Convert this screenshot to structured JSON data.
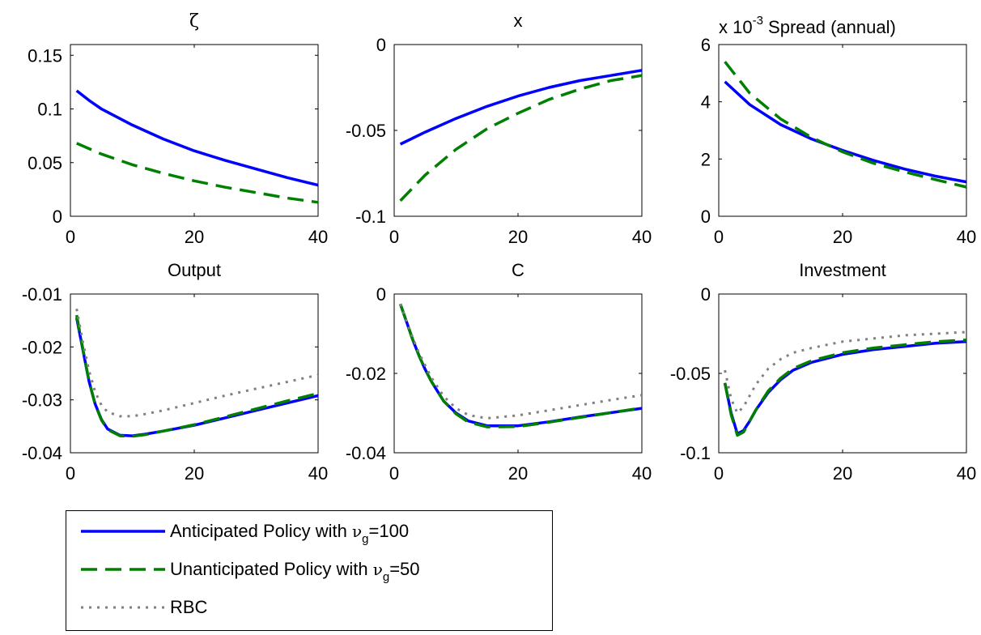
{
  "chart_data": [
    {
      "type": "line",
      "title": "ζ",
      "xlim": [
        0,
        40
      ],
      "ylim": [
        0,
        0.16
      ],
      "xticks": [
        0,
        20,
        40
      ],
      "xtick_labels": [
        "0",
        "20",
        "40"
      ],
      "yticks": [
        0,
        0.05,
        0.1,
        0.15
      ],
      "ytick_labels": [
        "0",
        "0.05",
        "0.1",
        "0.15"
      ],
      "grid": false,
      "series": [
        {
          "name": "Anticipated Policy with νg=100",
          "x": [
            1,
            3,
            5,
            8,
            10,
            15,
            20,
            25,
            30,
            35,
            40
          ],
          "y": [
            0.117,
            0.108,
            0.1,
            0.091,
            0.085,
            0.072,
            0.061,
            0.052,
            0.044,
            0.036,
            0.029
          ]
        },
        {
          "name": "Unanticipated Policy with νg=50",
          "x": [
            1,
            5,
            10,
            15,
            20,
            25,
            30,
            35,
            40
          ],
          "y": [
            0.068,
            0.058,
            0.048,
            0.04,
            0.033,
            0.027,
            0.022,
            0.017,
            0.013
          ]
        }
      ]
    },
    {
      "type": "line",
      "title": "x",
      "xlim": [
        0,
        40
      ],
      "ylim": [
        -0.1,
        0
      ],
      "xticks": [
        0,
        20,
        40
      ],
      "xtick_labels": [
        "0",
        "20",
        "40"
      ],
      "yticks": [
        -0.1,
        -0.05,
        0
      ],
      "ytick_labels": [
        "-0.1",
        "-0.05",
        "0"
      ],
      "grid": false,
      "series": [
        {
          "name": "Anticipated Policy with νg=100",
          "x": [
            1,
            5,
            10,
            15,
            20,
            25,
            30,
            35,
            40
          ],
          "y": [
            -0.058,
            -0.051,
            -0.043,
            -0.036,
            -0.03,
            -0.025,
            -0.021,
            -0.018,
            -0.015
          ]
        },
        {
          "name": "Unanticipated Policy with νg=50",
          "x": [
            1,
            5,
            10,
            15,
            20,
            25,
            30,
            35,
            40
          ],
          "y": [
            -0.091,
            -0.076,
            -0.061,
            -0.049,
            -0.04,
            -0.032,
            -0.026,
            -0.021,
            -0.018
          ]
        }
      ]
    },
    {
      "type": "line",
      "title": "Spread (annual)",
      "scale_label": "x 10",
      "scale_exponent": "-3",
      "xlim": [
        0,
        40
      ],
      "ylim": [
        0,
        6
      ],
      "xticks": [
        0,
        20,
        40
      ],
      "xtick_labels": [
        "0",
        "20",
        "40"
      ],
      "yticks": [
        0,
        2,
        4,
        6
      ],
      "ytick_labels": [
        "0",
        "2",
        "4",
        "6"
      ],
      "grid": false,
      "series": [
        {
          "name": "Anticipated Policy with νg=100",
          "x": [
            1,
            5,
            10,
            15,
            20,
            25,
            30,
            35,
            40
          ],
          "y": [
            4.7,
            3.9,
            3.2,
            2.7,
            2.3,
            1.95,
            1.65,
            1.4,
            1.2
          ]
        },
        {
          "name": "Unanticipated Policy with νg=50",
          "x": [
            1,
            5,
            10,
            15,
            20,
            25,
            30,
            35,
            40
          ],
          "y": [
            5.4,
            4.3,
            3.4,
            2.75,
            2.25,
            1.85,
            1.55,
            1.28,
            1.02
          ]
        }
      ]
    },
    {
      "type": "line",
      "title": "Output",
      "xlim": [
        0,
        40
      ],
      "ylim": [
        -0.04,
        -0.01
      ],
      "xticks": [
        0,
        20,
        40
      ],
      "xtick_labels": [
        "0",
        "20",
        "40"
      ],
      "yticks": [
        -0.04,
        -0.03,
        -0.02,
        -0.01
      ],
      "ytick_labels": [
        "-0.04",
        "-0.03",
        "-0.02",
        "-0.01"
      ],
      "grid": false,
      "series": [
        {
          "name": "Anticipated Policy with νg=100",
          "x": [
            1,
            2,
            3,
            4,
            5,
            6,
            8,
            10,
            12,
            15,
            20,
            25,
            30,
            35,
            40
          ],
          "y": [
            -0.0145,
            -0.0205,
            -0.0265,
            -0.0308,
            -0.0337,
            -0.0355,
            -0.0367,
            -0.0368,
            -0.0365,
            -0.0359,
            -0.0348,
            -0.0334,
            -0.032,
            -0.0306,
            -0.0292
          ]
        },
        {
          "name": "Unanticipated Policy with νg=50",
          "x": [
            1,
            2,
            3,
            4,
            5,
            6,
            8,
            10,
            12,
            15,
            20,
            25,
            30,
            35,
            40
          ],
          "y": [
            -0.014,
            -0.0203,
            -0.0265,
            -0.0309,
            -0.0338,
            -0.0356,
            -0.0368,
            -0.0369,
            -0.0366,
            -0.0359,
            -0.0347,
            -0.0332,
            -0.0317,
            -0.0302,
            -0.0288
          ]
        },
        {
          "name": "RBC",
          "x": [
            1,
            2,
            3,
            4,
            5,
            6,
            8,
            10,
            12,
            15,
            20,
            25,
            30,
            35,
            40
          ],
          "y": [
            -0.0128,
            -0.019,
            -0.0245,
            -0.0285,
            -0.031,
            -0.0323,
            -0.0331,
            -0.0331,
            -0.0327,
            -0.032,
            -0.0306,
            -0.0292,
            -0.0279,
            -0.0266,
            -0.0253
          ]
        }
      ]
    },
    {
      "type": "line",
      "title": "C",
      "xlim": [
        0,
        40
      ],
      "ylim": [
        -0.04,
        0
      ],
      "xticks": [
        0,
        20,
        40
      ],
      "xtick_labels": [
        "0",
        "20",
        "40"
      ],
      "yticks": [
        -0.04,
        -0.02,
        0
      ],
      "ytick_labels": [
        "-0.04",
        "-0.02",
        "0"
      ],
      "grid": false,
      "series": [
        {
          "name": "Anticipated Policy with νg=100",
          "x": [
            1,
            2,
            3,
            4,
            5,
            6,
            8,
            10,
            12,
            15,
            20,
            25,
            30,
            35,
            40
          ],
          "y": [
            -0.0025,
            -0.007,
            -0.0115,
            -0.0155,
            -0.019,
            -0.022,
            -0.027,
            -0.03,
            -0.032,
            -0.0332,
            -0.0332,
            -0.0322,
            -0.031,
            -0.0299,
            -0.0288
          ]
        },
        {
          "name": "Unanticipated Policy with νg=50",
          "x": [
            1,
            2,
            3,
            4,
            5,
            6,
            8,
            10,
            12,
            15,
            20,
            25,
            30,
            35,
            40
          ],
          "y": [
            -0.0025,
            -0.007,
            -0.0115,
            -0.0155,
            -0.019,
            -0.022,
            -0.027,
            -0.0302,
            -0.0323,
            -0.0335,
            -0.0334,
            -0.0323,
            -0.0311,
            -0.0299,
            -0.0287
          ]
        },
        {
          "name": "RBC",
          "x": [
            1,
            2,
            3,
            4,
            5,
            6,
            8,
            10,
            12,
            15,
            20,
            25,
            30,
            35,
            40
          ],
          "y": [
            -0.0025,
            -0.0068,
            -0.011,
            -0.0148,
            -0.018,
            -0.021,
            -0.0258,
            -0.0288,
            -0.0305,
            -0.0313,
            -0.0306,
            -0.0293,
            -0.028,
            -0.0267,
            -0.0255
          ]
        }
      ]
    },
    {
      "type": "line",
      "title": "Investment",
      "xlim": [
        0,
        40
      ],
      "ylim": [
        -0.1,
        0
      ],
      "xticks": [
        0,
        20,
        40
      ],
      "xtick_labels": [
        "0",
        "20",
        "40"
      ],
      "yticks": [
        -0.1,
        -0.05,
        0
      ],
      "ytick_labels": [
        "-0.1",
        "-0.05",
        "0"
      ],
      "grid": false,
      "series": [
        {
          "name": "Anticipated Policy with νg=100",
          "x": [
            1,
            2,
            3,
            4,
            5,
            6,
            8,
            10,
            12,
            15,
            20,
            25,
            30,
            35,
            40
          ],
          "y": [
            -0.056,
            -0.075,
            -0.088,
            -0.086,
            -0.08,
            -0.073,
            -0.062,
            -0.054,
            -0.048,
            -0.043,
            -0.038,
            -0.035,
            -0.033,
            -0.031,
            -0.03
          ]
        },
        {
          "name": "Unanticipated Policy with νg=50",
          "x": [
            1,
            2,
            3,
            4,
            5,
            6,
            8,
            10,
            12,
            15,
            20,
            25,
            30,
            35,
            40
          ],
          "y": [
            -0.056,
            -0.076,
            -0.089,
            -0.087,
            -0.08,
            -0.073,
            -0.061,
            -0.053,
            -0.047,
            -0.042,
            -0.037,
            -0.034,
            -0.032,
            -0.03,
            -0.029
          ]
        },
        {
          "name": "RBC",
          "x": [
            1,
            2,
            3,
            4,
            5,
            6,
            8,
            10,
            12,
            15,
            20,
            25,
            30,
            35,
            40
          ],
          "y": [
            -0.048,
            -0.066,
            -0.075,
            -0.071,
            -0.064,
            -0.057,
            -0.047,
            -0.041,
            -0.037,
            -0.034,
            -0.03,
            -0.028,
            -0.026,
            -0.025,
            -0.024
          ]
        }
      ]
    }
  ],
  "legend": {
    "entries": [
      {
        "pre": "Anticipated Policy with  ",
        "nu": "ν",
        "sub": "g",
        "post": "=100"
      },
      {
        "pre": "Unanticipated Policy with ",
        "nu": "ν",
        "sub": "g",
        "post": "=50"
      },
      {
        "pre": "RBC",
        "nu": "",
        "sub": "",
        "post": ""
      }
    ]
  },
  "styles": {
    "colors": [
      "#0000ff",
      "#008000",
      "#808080"
    ],
    "dashes": [
      "",
      "20,10",
      "3,7"
    ]
  }
}
